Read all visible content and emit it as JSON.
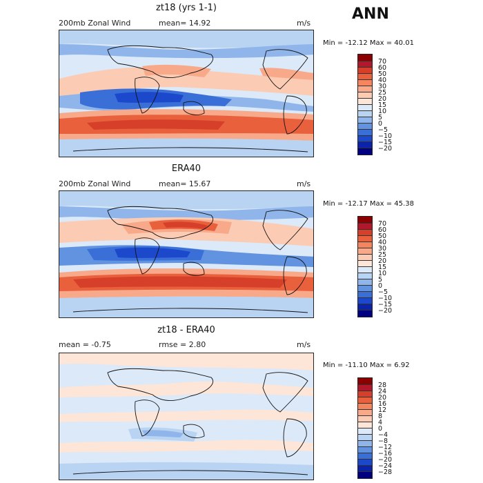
{
  "season": "ANN",
  "panels": [
    {
      "title": "zt18 (yrs 1-1)",
      "field": "200mb Zonal Wind",
      "stat1": "mean=   14.92",
      "stat2": "",
      "units": "m/s",
      "minmax": "Min = -12.12  Max =   40.01"
    },
    {
      "title": "ERA40",
      "field": "200mb Zonal Wind",
      "stat1": "mean=   15.67",
      "stat2": "",
      "units": "m/s",
      "minmax": "Min = -12.17  Max =   45.38"
    },
    {
      "title": "zt18 - ERA40",
      "field": "",
      "stat1": "mean =   -0.75",
      "stat2": "rmse =    2.80",
      "units": "m/s",
      "minmax": "Min = -11.10  Max =    6.92"
    }
  ],
  "colorbar_levels": [
    "70",
    "60",
    "50",
    "40",
    "30",
    "25",
    "20",
    "15",
    "10",
    "5",
    "0",
    "−5",
    "−10",
    "−15",
    "−20"
  ],
  "diff_colorbar_levels": [
    "28",
    "24",
    "20",
    "16",
    "12",
    "8",
    "4",
    "0",
    "−4",
    "−8",
    "−12",
    "−16",
    "−20",
    "−24",
    "−28"
  ],
  "colors": {
    "main_scale": [
      "#8b0000",
      "#b2182b",
      "#d6402a",
      "#e8603c",
      "#f4855f",
      "#f8a98a",
      "#fbcbb4",
      "#fde5d8",
      "#dbe9f8",
      "#b9d3f2",
      "#8fb5ea",
      "#6293e0",
      "#3a6fd8",
      "#1c48cc",
      "#0a23a8",
      "#000080"
    ],
    "diff_scale": [
      "#8b0000",
      "#b2182b",
      "#d6402a",
      "#e8603c",
      "#f4855f",
      "#f8a98a",
      "#fbcbb4",
      "#fde5d8",
      "#dbe9f8",
      "#b9d3f2",
      "#8fb5ea",
      "#6293e0",
      "#3a6fd8",
      "#1c48cc",
      "#0a23a8",
      "#000080"
    ]
  }
}
